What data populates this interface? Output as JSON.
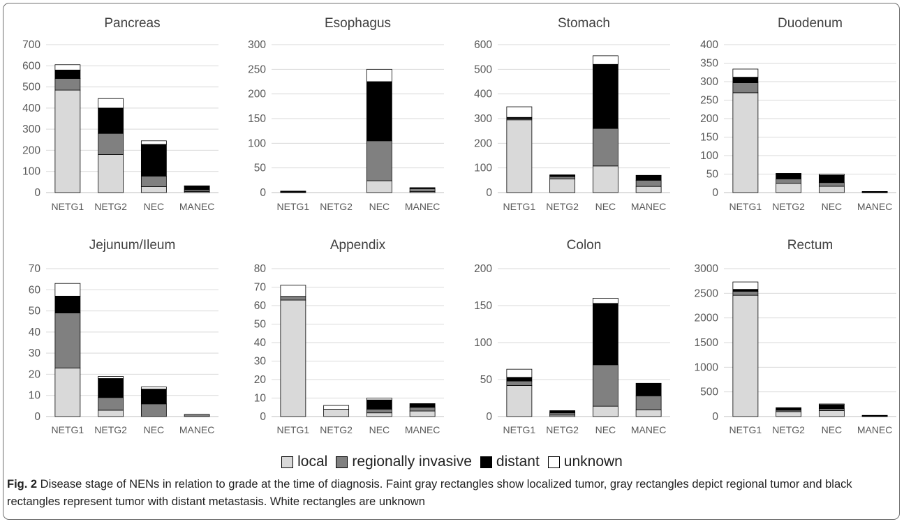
{
  "figure": {
    "caption_label": "Fig. 2",
    "caption_text": " Disease stage of NENs in relation to grade at the time of diagnosis. Faint gray rectangles show localized tumor, gray rectangles depict regional tumor and black rectangles represent tumor with distant metastasis. White rectangles are unknown"
  },
  "legend": [
    {
      "label": "local",
      "color": "#d9d9d9"
    },
    {
      "label": "regionally invasive",
      "color": "#808080"
    },
    {
      "label": "distant",
      "color": "#000000"
    },
    {
      "label": "unknown",
      "color": "#ffffff"
    }
  ],
  "chart_data": [
    {
      "type": "bar",
      "stacked": true,
      "title": "Pancreas",
      "categories": [
        "NETG1",
        "NETG2",
        "NEC",
        "MANEC"
      ],
      "ylim": [
        0,
        700
      ],
      "yticks": [
        0,
        100,
        200,
        300,
        400,
        500,
        600,
        700
      ],
      "series": [
        {
          "name": "local",
          "values": [
            485,
            180,
            28,
            5
          ]
        },
        {
          "name": "regionally invasive",
          "values": [
            55,
            100,
            50,
            8
          ]
        },
        {
          "name": "distant",
          "values": [
            40,
            120,
            150,
            17
          ]
        },
        {
          "name": "unknown",
          "values": [
            25,
            45,
            17,
            2
          ]
        }
      ]
    },
    {
      "type": "bar",
      "stacked": true,
      "title": "Esophagus",
      "categories": [
        "NETG1",
        "NETG2",
        "NEC",
        "MANEC"
      ],
      "ylim": [
        0,
        300
      ],
      "yticks": [
        0,
        50,
        100,
        150,
        200,
        250,
        300
      ],
      "series": [
        {
          "name": "local",
          "values": [
            1,
            0,
            24,
            2
          ]
        },
        {
          "name": "regionally invasive",
          "values": [
            1,
            0,
            81,
            6
          ]
        },
        {
          "name": "distant",
          "values": [
            1,
            0,
            120,
            2
          ]
        },
        {
          "name": "unknown",
          "values": [
            0,
            0,
            25,
            0
          ]
        }
      ]
    },
    {
      "type": "bar",
      "stacked": true,
      "title": "Stomach",
      "categories": [
        "NETG1",
        "NETG2",
        "NEC",
        "MANEC"
      ],
      "ylim": [
        0,
        600
      ],
      "yticks": [
        0,
        100,
        200,
        300,
        400,
        500,
        600
      ],
      "series": [
        {
          "name": "local",
          "values": [
            295,
            55,
            108,
            25
          ]
        },
        {
          "name": "regionally invasive",
          "values": [
            5,
            10,
            152,
            25
          ]
        },
        {
          "name": "distant",
          "values": [
            5,
            5,
            260,
            20
          ]
        },
        {
          "name": "unknown",
          "values": [
            43,
            2,
            35,
            0
          ]
        }
      ]
    },
    {
      "type": "bar",
      "stacked": true,
      "title": "Duodenum",
      "categories": [
        "NETG1",
        "NETG2",
        "NEC",
        "MANEC"
      ],
      "ylim": [
        0,
        400
      ],
      "yticks": [
        0,
        50,
        100,
        150,
        200,
        250,
        300,
        350,
        400
      ],
      "series": [
        {
          "name": "local",
          "values": [
            270,
            25,
            17,
            1
          ]
        },
        {
          "name": "regionally invasive",
          "values": [
            27,
            12,
            10,
            1
          ]
        },
        {
          "name": "distant",
          "values": [
            15,
            15,
            20,
            1
          ]
        },
        {
          "name": "unknown",
          "values": [
            22,
            0,
            3,
            0
          ]
        }
      ]
    },
    {
      "type": "bar",
      "stacked": true,
      "title": "Jejunum/Ileum",
      "categories": [
        "NETG1",
        "NETG2",
        "NEC",
        "MANEC"
      ],
      "ylim": [
        0,
        70
      ],
      "yticks": [
        0,
        10,
        20,
        30,
        40,
        50,
        60,
        70
      ],
      "series": [
        {
          "name": "local",
          "values": [
            23,
            3,
            0,
            0
          ]
        },
        {
          "name": "regionally invasive",
          "values": [
            26,
            6,
            6,
            1
          ]
        },
        {
          "name": "distant",
          "values": [
            8,
            9,
            7,
            0
          ]
        },
        {
          "name": "unknown",
          "values": [
            6,
            1,
            1,
            0
          ]
        }
      ]
    },
    {
      "type": "bar",
      "stacked": true,
      "title": "Appendix",
      "categories": [
        "NETG1",
        "NETG2",
        "NEC",
        "MANEC"
      ],
      "ylim": [
        0,
        80
      ],
      "yticks": [
        0,
        10,
        20,
        30,
        40,
        50,
        60,
        70,
        80
      ],
      "series": [
        {
          "name": "local",
          "values": [
            63,
            4,
            2,
            3
          ]
        },
        {
          "name": "regionally invasive",
          "values": [
            2,
            0,
            2,
            2
          ]
        },
        {
          "name": "distant",
          "values": [
            0,
            0,
            5,
            2
          ]
        },
        {
          "name": "unknown",
          "values": [
            6,
            2,
            1,
            0
          ]
        }
      ]
    },
    {
      "type": "bar",
      "stacked": true,
      "title": "Colon",
      "categories": [
        "NETG1",
        "NETG2",
        "NEC",
        "MANEC"
      ],
      "ylim": [
        0,
        200
      ],
      "yticks": [
        0,
        50,
        100,
        150,
        200
      ],
      "series": [
        {
          "name": "local",
          "values": [
            42,
            2,
            14,
            9
          ]
        },
        {
          "name": "regionally invasive",
          "values": [
            6,
            3,
            56,
            19
          ]
        },
        {
          "name": "distant",
          "values": [
            5,
            3,
            83,
            17
          ]
        },
        {
          "name": "unknown",
          "values": [
            11,
            0,
            7,
            0
          ]
        }
      ]
    },
    {
      "type": "bar",
      "stacked": true,
      "title": "Rectum",
      "categories": [
        "NETG1",
        "NETG2",
        "NEC",
        "MANEC"
      ],
      "ylim": [
        0,
        3000
      ],
      "yticks": [
        0,
        500,
        1000,
        1500,
        2000,
        2500,
        3000
      ],
      "series": [
        {
          "name": "local",
          "values": [
            2460,
            100,
            120,
            10
          ]
        },
        {
          "name": "regionally invasive",
          "values": [
            80,
            30,
            40,
            5
          ]
        },
        {
          "name": "distant",
          "values": [
            40,
            50,
            80,
            10
          ]
        },
        {
          "name": "unknown",
          "values": [
            150,
            0,
            15,
            0
          ]
        }
      ]
    }
  ]
}
